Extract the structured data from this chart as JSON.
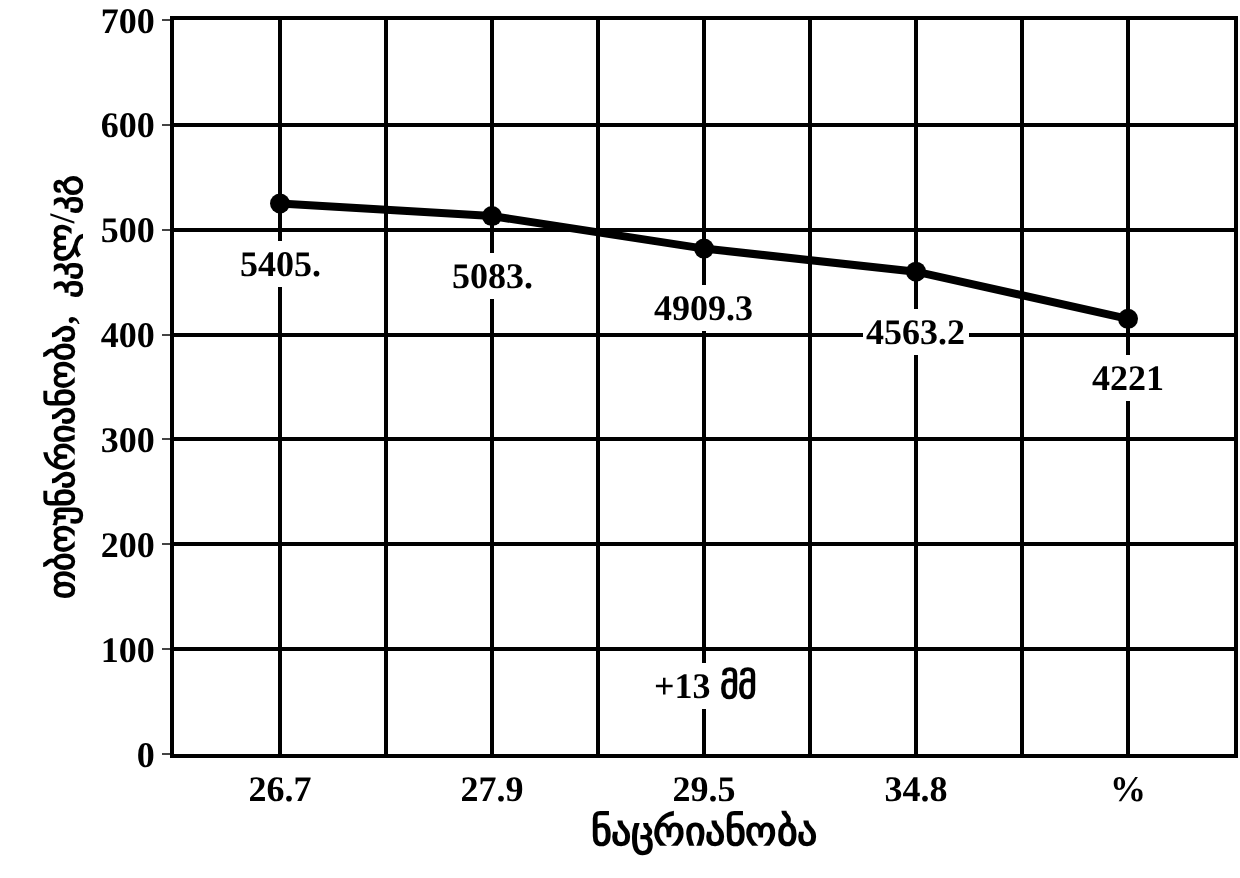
{
  "chart_data": {
    "type": "line",
    "xlabel": "ნაცრიანობა",
    "ylabel": "თბოუნარიანობა,  კკლ/კგ",
    "categories": [
      "26.7",
      "27.9",
      "29.5",
      "34.8",
      "%"
    ],
    "series": [
      {
        "color": "#000000",
        "values": [
          525,
          513,
          482,
          460,
          415
        ]
      }
    ],
    "ylim": [
      0,
      700
    ],
    "yticks": [
      0,
      100,
      200,
      300,
      400,
      500,
      600,
      700
    ],
    "grid": true,
    "marker": "circle",
    "line_style": "solid",
    "legend": false,
    "annotations": [
      {
        "text": "5405.",
        "x": "26.7",
        "y": 525
      },
      {
        "text": "5083.",
        "x": "27.9",
        "y": 513
      },
      {
        "text": "4909.3",
        "x": "29.5",
        "y": 482
      },
      {
        "text": "4563.2",
        "x": "34.8",
        "y": 460
      },
      {
        "text": "4221",
        "x": "%",
        "y": 415
      },
      "+13 მმ"
    ]
  }
}
